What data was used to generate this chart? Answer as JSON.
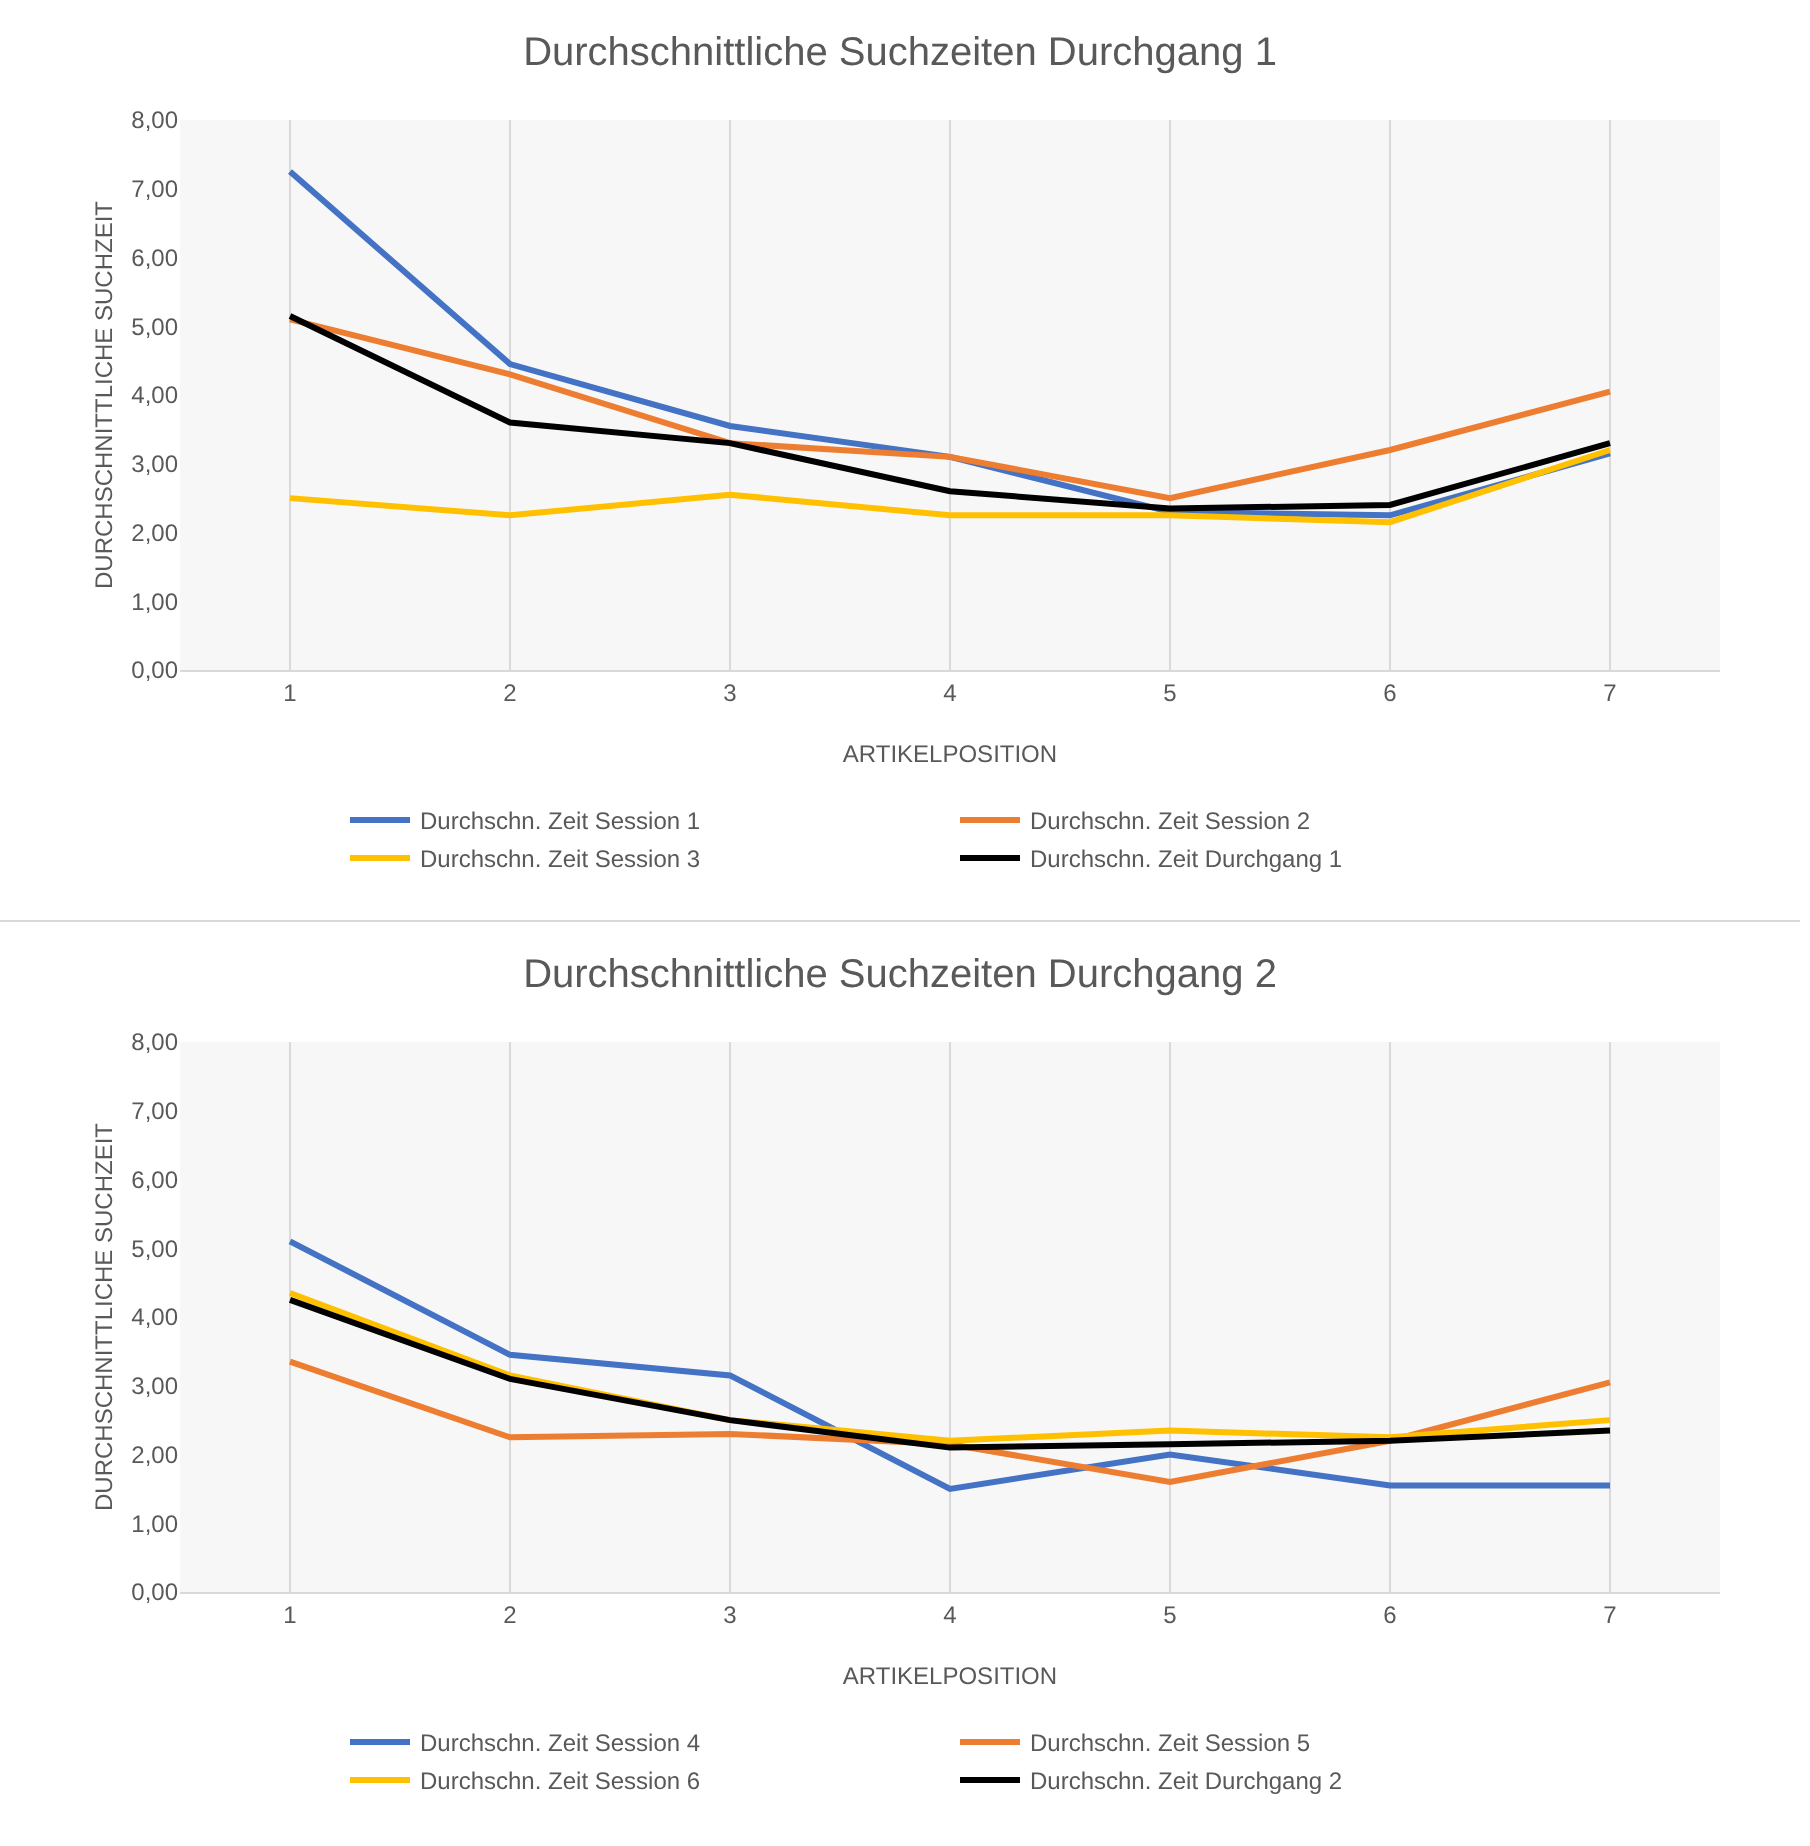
{
  "chart_data": [
    {
      "type": "line",
      "title": "Durchschnittliche Suchzeiten Durchgang 1",
      "xlabel": "ARTIKELPOSITION",
      "ylabel": "DURCHSCHNITTLICHE SUCHZEIT",
      "categories": [
        "1",
        "2",
        "3",
        "4",
        "5",
        "6",
        "7"
      ],
      "ylim": [
        0,
        8
      ],
      "yticks": [
        {
          "value": 0,
          "label": "0,00"
        },
        {
          "value": 1,
          "label": "1,00"
        },
        {
          "value": 2,
          "label": "2,00"
        },
        {
          "value": 3,
          "label": "3,00"
        },
        {
          "value": 4,
          "label": "4,00"
        },
        {
          "value": 5,
          "label": "5,00"
        },
        {
          "value": 6,
          "label": "6,00"
        },
        {
          "value": 7,
          "label": "7,00"
        },
        {
          "value": 8,
          "label": "8,00"
        }
      ],
      "grid": "x",
      "legend": "bottom",
      "marker": "none",
      "line_style": "solid",
      "series": [
        {
          "name": "Durchschn. Zeit Session 1",
          "color": "#4472c4",
          "values": [
            7.25,
            4.45,
            3.55,
            3.1,
            2.3,
            2.25,
            3.15
          ]
        },
        {
          "name": "Durchschn. Zeit Session 2",
          "color": "#ed7d31",
          "values": [
            5.1,
            4.3,
            3.3,
            3.1,
            2.5,
            3.2,
            4.05
          ]
        },
        {
          "name": "Durchschn. Zeit Session 3",
          "color": "#ffc000",
          "values": [
            2.5,
            2.25,
            2.55,
            2.25,
            2.25,
            2.15,
            3.2
          ]
        },
        {
          "name": "Durchschn. Zeit Durchgang 1",
          "color": "#000000",
          "values": [
            5.15,
            3.6,
            3.3,
            2.6,
            2.35,
            2.4,
            3.3
          ]
        }
      ]
    },
    {
      "type": "line",
      "title": "Durchschnittliche Suchzeiten Durchgang 2",
      "xlabel": "ARTIKELPOSITION",
      "ylabel": "DURCHSCHNITTLICHE SUCHZEIT",
      "categories": [
        "1",
        "2",
        "3",
        "4",
        "5",
        "6",
        "7"
      ],
      "ylim": [
        0,
        8
      ],
      "yticks": [
        {
          "value": 0,
          "label": "0,00"
        },
        {
          "value": 1,
          "label": "1,00"
        },
        {
          "value": 2,
          "label": "2,00"
        },
        {
          "value": 3,
          "label": "3,00"
        },
        {
          "value": 4,
          "label": "4,00"
        },
        {
          "value": 5,
          "label": "5,00"
        },
        {
          "value": 6,
          "label": "6,00"
        },
        {
          "value": 7,
          "label": "7,00"
        },
        {
          "value": 8,
          "label": "8,00"
        }
      ],
      "grid": "x",
      "legend": "bottom",
      "marker": "none",
      "line_style": "solid",
      "series": [
        {
          "name": "Durchschn. Zeit Session 4",
          "color": "#4472c4",
          "values": [
            5.1,
            3.45,
            3.15,
            1.5,
            2.0,
            1.55,
            1.55
          ]
        },
        {
          "name": "Durchschn. Zeit Session 5",
          "color": "#ed7d31",
          "values": [
            3.35,
            2.25,
            2.3,
            2.15,
            1.6,
            2.2,
            3.05
          ]
        },
        {
          "name": "Durchschn. Zeit Session 6",
          "color": "#ffc000",
          "values": [
            4.35,
            3.15,
            2.5,
            2.2,
            2.35,
            2.25,
            2.5
          ]
        },
        {
          "name": "Durchschn. Zeit Durchgang 2",
          "color": "#000000",
          "values": [
            4.25,
            3.1,
            2.5,
            2.1,
            2.15,
            2.2,
            2.35
          ]
        }
      ]
    }
  ]
}
